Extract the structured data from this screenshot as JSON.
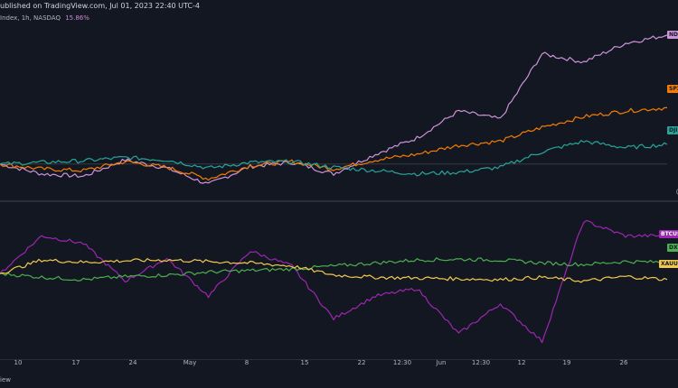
{
  "header": {
    "published_text": "ublished on TradingView.com, Jul 01, 2023 22:40 UTC-4"
  },
  "legend": {
    "symbol_text": "Index, 1h, NASDAQ",
    "change_text": "15.86%"
  },
  "tags": {
    "ndx": "NDX",
    "spx": "SPX",
    "dji": "DJI",
    "btc": "BTCUSD",
    "dxy": "DXY",
    "xau": "XAUUSD"
  },
  "colors": {
    "background": "#131722",
    "ndx": "#ce93d8",
    "spx": "#f57c00",
    "dji": "#26a69a",
    "btc": "#9c27b0",
    "dxy": "#4caf50",
    "xau": "#f2c94c",
    "grid": "#2a2e39",
    "text": "#b2b5be"
  },
  "xaxis": {
    "ticks": [
      "10",
      "17",
      "24",
      "May",
      "8",
      "15",
      "22",
      "12:30",
      "Jun",
      "12:30",
      "12",
      "19",
      "26"
    ]
  },
  "footer": {
    "brand": "iew"
  },
  "chart_data": [
    {
      "type": "line",
      "pane": "top",
      "series": [
        {
          "name": "NDX",
          "values": [
            0,
            -1.2,
            -1.5,
            0.5,
            -0.5,
            -2.5,
            -0.3,
            0.2,
            -1.2,
            1.2,
            3.2,
            6.5,
            5.5,
            13.5,
            12.5,
            14.8,
            15.8
          ]
        },
        {
          "name": "SPX",
          "values": [
            0,
            -0.6,
            -0.8,
            0.3,
            -0.4,
            -1.8,
            -0.2,
            0.3,
            -0.6,
            0.5,
            1.2,
            2.3,
            2.8,
            4.5,
            5.8,
            6.5,
            6.9
          ]
        },
        {
          "name": "DJI",
          "values": [
            0,
            0.2,
            0.4,
            0.8,
            0.5,
            -0.5,
            0.2,
            0.3,
            -0.4,
            -0.8,
            -1.2,
            -1.0,
            -0.4,
            1.5,
            2.8,
            2.0,
            2.4
          ]
        }
      ]
    },
    {
      "type": "line",
      "pane": "bottom",
      "series": [
        {
          "name": "BTCUSD",
          "values": [
            0,
            5,
            4,
            -1,
            2,
            -3,
            3,
            1,
            -6,
            -3,
            -2,
            -8,
            -4,
            -9,
            7,
            5,
            5
          ]
        },
        {
          "name": "DXY",
          "values": [
            0,
            -0.5,
            -0.8,
            -0.4,
            -0.2,
            0.2,
            0.4,
            0.6,
            1.0,
            1.4,
            1.8,
            1.9,
            1.8,
            1.4,
            1.2,
            1.6,
            1.5
          ]
        },
        {
          "name": "XAUUSD",
          "values": [
            0,
            1.8,
            1.5,
            1.7,
            1.8,
            1.6,
            1.4,
            1.0,
            -0.2,
            -0.5,
            -0.6,
            -0.7,
            -0.8,
            -0.5,
            -1.0,
            -0.4,
            -0.8
          ]
        }
      ]
    }
  ]
}
